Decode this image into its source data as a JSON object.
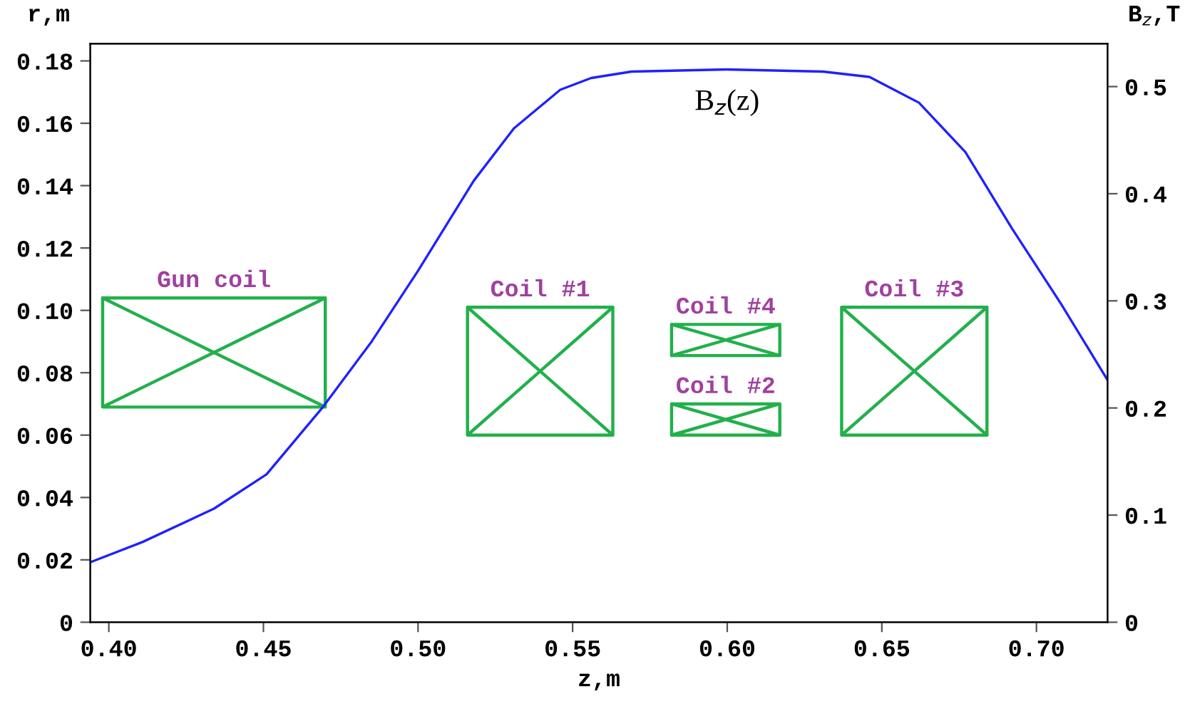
{
  "chart_data": {
    "type": "line",
    "xlabel": "z,m",
    "ylabel": "r,m",
    "y2label": "B$_{z}$,T",
    "xlim": [
      0.394,
      0.723
    ],
    "ylim": [
      0,
      0.1855
    ],
    "y2lim": [
      0,
      0.54
    ],
    "xticks": [
      {
        "value": 0.4,
        "label": "0.40"
      },
      {
        "value": 0.45,
        "label": "0.45"
      },
      {
        "value": 0.5,
        "label": "0.50"
      },
      {
        "value": 0.55,
        "label": "0.55"
      },
      {
        "value": 0.6,
        "label": "0.60"
      },
      {
        "value": 0.65,
        "label": "0.65"
      },
      {
        "value": 0.7,
        "label": "0.70"
      }
    ],
    "yticks": [
      0,
      0.02,
      0.04,
      0.06,
      0.08,
      {
        "value": 0.1,
        "label": "0.10"
      },
      0.12,
      0.14,
      0.16,
      0.18
    ],
    "y2ticks": [
      0,
      0.1,
      0.2,
      0.3,
      0.4,
      0.5
    ],
    "grid": false,
    "legend": false,
    "marker": "none",
    "line_style": "solid",
    "series": [
      {
        "name": "B$_{z}$(z)",
        "axis": "y2",
        "color": "#2020ff",
        "x": [
          0.394,
          0.411,
          0.434,
          0.451,
          0.469,
          0.485,
          0.5,
          0.518,
          0.531,
          0.546,
          0.556,
          0.569,
          0.6,
          0.631,
          0.646,
          0.662,
          0.677,
          0.692,
          0.708,
          0.723
        ],
        "values": [
          0.056,
          0.075,
          0.106,
          0.138,
          0.2,
          0.262,
          0.328,
          0.412,
          0.461,
          0.497,
          0.508,
          0.514,
          0.516,
          0.514,
          0.509,
          0.485,
          0.439,
          0.368,
          0.297,
          0.226
        ]
      },
      {
        "name": "Gun coil",
        "color": "#22b04b",
        "x": [
          0.398,
          0.47,
          0.47,
          0.398,
          0.398,
          0.47,
          null,
          0.398,
          0.47
        ],
        "values": [
          0.069,
          0.069,
          0.104,
          0.104,
          0.069,
          0.104,
          null,
          0.104,
          0.069
        ]
      },
      {
        "name": "Coil #1",
        "color": "#22b04b",
        "x": [
          0.516,
          0.563,
          0.563,
          0.516,
          0.516,
          0.563,
          null,
          0.516,
          0.563
        ],
        "values": [
          0.06,
          0.06,
          0.101,
          0.101,
          0.06,
          0.101,
          null,
          0.101,
          0.06
        ]
      },
      {
        "name": "Coil #4",
        "color": "#22b04b",
        "x": [
          0.582,
          0.617,
          0.617,
          0.582,
          0.582,
          0.617,
          null,
          0.582,
          0.617
        ],
        "values": [
          0.0855,
          0.0855,
          0.0955,
          0.0955,
          0.0855,
          0.0955,
          null,
          0.0955,
          0.0855
        ]
      },
      {
        "name": "Coil #2",
        "color": "#22b04b",
        "x": [
          0.582,
          0.617,
          0.617,
          0.582,
          0.582,
          0.617,
          null,
          0.582,
          0.617
        ],
        "values": [
          0.06,
          0.06,
          0.07,
          0.07,
          0.06,
          0.07,
          null,
          0.07,
          0.06
        ]
      },
      {
        "name": "Coil #3",
        "color": "#22b04b",
        "x": [
          0.637,
          0.684,
          0.684,
          0.637,
          0.637,
          0.684,
          null,
          0.637,
          0.684
        ],
        "values": [
          0.06,
          0.06,
          0.101,
          0.101,
          0.06,
          0.101,
          null,
          0.101,
          0.06
        ]
      }
    ]
  }
}
